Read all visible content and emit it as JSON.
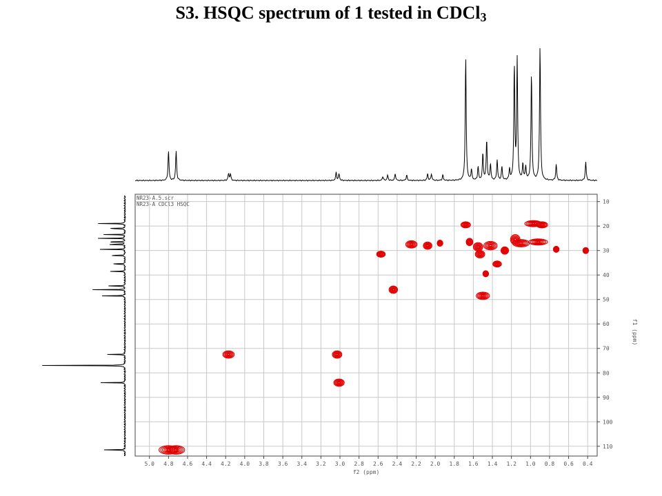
{
  "title": {
    "prefix": "S3. HSQC spectrum of 1 tested in CDCl",
    "subscript": "3"
  },
  "colors": {
    "contour": "#e00000",
    "spectrum": "#000000",
    "grid": "#c8c8c8",
    "frame": "#444444"
  },
  "chart_data": {
    "type": "scatter",
    "subtype": "2D NMR contour plot",
    "title": "S3. HSQC spectrum of 1 tested in CDCl3",
    "info_lines": [
      "NR23-A.5.scr",
      "NR23-A  CDCl3  HSQC"
    ],
    "x_axis": {
      "label": "f2 (ppm)",
      "range": [
        5.15,
        0.3
      ],
      "reversed": true,
      "ticks": [
        "5.0",
        "4.8",
        "4.6",
        "4.4",
        "4.2",
        "4.0",
        "3.8",
        "3.6",
        "3.4",
        "3.2",
        "3.0",
        "2.8",
        "2.6",
        "2.4",
        "2.2",
        "2.0",
        "1.8",
        "1.6",
        "1.4",
        "1.2",
        "1.0",
        "0.8",
        "0.6",
        "0.4"
      ]
    },
    "y_axis": {
      "label": "f1 (ppm)",
      "range": [
        7,
        114
      ],
      "reversed": false,
      "ticks": [
        "10",
        "20",
        "30",
        "40",
        "50",
        "60",
        "70",
        "80",
        "90",
        "100",
        "110"
      ]
    },
    "grid": true,
    "cross_peaks": [
      {
        "h": 4.8,
        "c": 111.5,
        "w": 0.2,
        "hgt": 3.5
      },
      {
        "h": 4.72,
        "c": 111.5,
        "w": 0.18,
        "hgt": 3.5
      },
      {
        "h": 4.17,
        "c": 72.5,
        "w": 0.12,
        "hgt": 3.0
      },
      {
        "h": 3.03,
        "c": 72.5,
        "w": 0.1,
        "hgt": 3.0
      },
      {
        "h": 3.01,
        "c": 84.0,
        "w": 0.11,
        "hgt": 3.0
      },
      {
        "h": 2.44,
        "c": 46.0,
        "w": 0.09,
        "hgt": 3.0
      },
      {
        "h": 2.57,
        "c": 31.5,
        "w": 0.09,
        "hgt": 2.5
      },
      {
        "h": 2.25,
        "c": 27.5,
        "w": 0.12,
        "hgt": 3.0
      },
      {
        "h": 2.08,
        "c": 28.0,
        "w": 0.09,
        "hgt": 3.0
      },
      {
        "h": 1.95,
        "c": 27.0,
        "w": 0.06,
        "hgt": 2.5
      },
      {
        "h": 1.68,
        "c": 19.5,
        "w": 0.1,
        "hgt": 2.5
      },
      {
        "h": 1.64,
        "c": 26.5,
        "w": 0.07,
        "hgt": 3.0
      },
      {
        "h": 1.55,
        "c": 28.5,
        "w": 0.1,
        "hgt": 3.5
      },
      {
        "h": 1.53,
        "c": 31.5,
        "w": 0.1,
        "hgt": 3.0
      },
      {
        "h": 1.5,
        "c": 48.5,
        "w": 0.14,
        "hgt": 3.0
      },
      {
        "h": 1.47,
        "c": 39.5,
        "w": 0.06,
        "hgt": 2.5
      },
      {
        "h": 1.42,
        "c": 28.0,
        "w": 0.14,
        "hgt": 3.5
      },
      {
        "h": 1.35,
        "c": 35.5,
        "w": 0.09,
        "hgt": 2.5
      },
      {
        "h": 1.27,
        "c": 30.0,
        "w": 0.08,
        "hgt": 3.0
      },
      {
        "h": 1.16,
        "c": 25.5,
        "w": 0.1,
        "hgt": 4.0
      },
      {
        "h": 1.1,
        "c": 27.0,
        "w": 0.18,
        "hgt": 3.0
      },
      {
        "h": 0.97,
        "c": 19.0,
        "w": 0.18,
        "hgt": 2.5
      },
      {
        "h": 0.88,
        "c": 19.5,
        "w": 0.12,
        "hgt": 2.5
      },
      {
        "h": 0.92,
        "c": 26.5,
        "w": 0.2,
        "hgt": 2.5
      },
      {
        "h": 0.73,
        "c": 29.5,
        "w": 0.06,
        "hgt": 2.5
      },
      {
        "h": 0.42,
        "c": 30.0,
        "w": 0.06,
        "hgt": 2.5
      }
    ],
    "h1_projection_peaks": [
      {
        "ppm": 4.8,
        "intensity": 0.22
      },
      {
        "ppm": 4.72,
        "intensity": 0.22
      },
      {
        "ppm": 4.17,
        "intensity": 0.05
      },
      {
        "ppm": 4.15,
        "intensity": 0.05
      },
      {
        "ppm": 3.04,
        "intensity": 0.06
      },
      {
        "ppm": 3.01,
        "intensity": 0.05
      },
      {
        "ppm": 2.55,
        "intensity": 0.03
      },
      {
        "ppm": 2.5,
        "intensity": 0.04
      },
      {
        "ppm": 2.42,
        "intensity": 0.05
      },
      {
        "ppm": 2.3,
        "intensity": 0.04
      },
      {
        "ppm": 2.08,
        "intensity": 0.05
      },
      {
        "ppm": 2.04,
        "intensity": 0.05
      },
      {
        "ppm": 1.92,
        "intensity": 0.04
      },
      {
        "ppm": 1.68,
        "intensity": 0.92
      },
      {
        "ppm": 1.62,
        "intensity": 0.08
      },
      {
        "ppm": 1.55,
        "intensity": 0.1
      },
      {
        "ppm": 1.5,
        "intensity": 0.2
      },
      {
        "ppm": 1.46,
        "intensity": 0.3
      },
      {
        "ppm": 1.42,
        "intensity": 0.12
      },
      {
        "ppm": 1.35,
        "intensity": 0.15
      },
      {
        "ppm": 1.3,
        "intensity": 0.1
      },
      {
        "ppm": 1.22,
        "intensity": 0.08
      },
      {
        "ppm": 1.17,
        "intensity": 0.85
      },
      {
        "ppm": 1.14,
        "intensity": 0.9
      },
      {
        "ppm": 1.08,
        "intensity": 0.12
      },
      {
        "ppm": 1.05,
        "intensity": 0.1
      },
      {
        "ppm": 0.99,
        "intensity": 0.8
      },
      {
        "ppm": 0.9,
        "intensity": 1.0
      },
      {
        "ppm": 0.73,
        "intensity": 0.12
      },
      {
        "ppm": 0.42,
        "intensity": 0.14
      }
    ],
    "c13_projection_peaks": [
      {
        "ppm": 19.0,
        "intensity": 0.35
      },
      {
        "ppm": 21.0,
        "intensity": 0.3
      },
      {
        "ppm": 23.5,
        "intensity": 0.25
      },
      {
        "ppm": 25.0,
        "intensity": 0.3
      },
      {
        "ppm": 26.5,
        "intensity": 0.32
      },
      {
        "ppm": 27.5,
        "intensity": 0.28
      },
      {
        "ppm": 29.5,
        "intensity": 0.3
      },
      {
        "ppm": 32.0,
        "intensity": 0.25
      },
      {
        "ppm": 35.5,
        "intensity": 0.22
      },
      {
        "ppm": 38.5,
        "intensity": 0.2
      },
      {
        "ppm": 44.5,
        "intensity": 0.28
      },
      {
        "ppm": 46.0,
        "intensity": 0.32
      },
      {
        "ppm": 48.5,
        "intensity": 0.3
      },
      {
        "ppm": 72.5,
        "intensity": 0.22
      },
      {
        "ppm": 77.0,
        "intensity": 1.0
      },
      {
        "ppm": 84.0,
        "intensity": 0.25
      },
      {
        "ppm": 111.5,
        "intensity": 0.28
      }
    ]
  }
}
